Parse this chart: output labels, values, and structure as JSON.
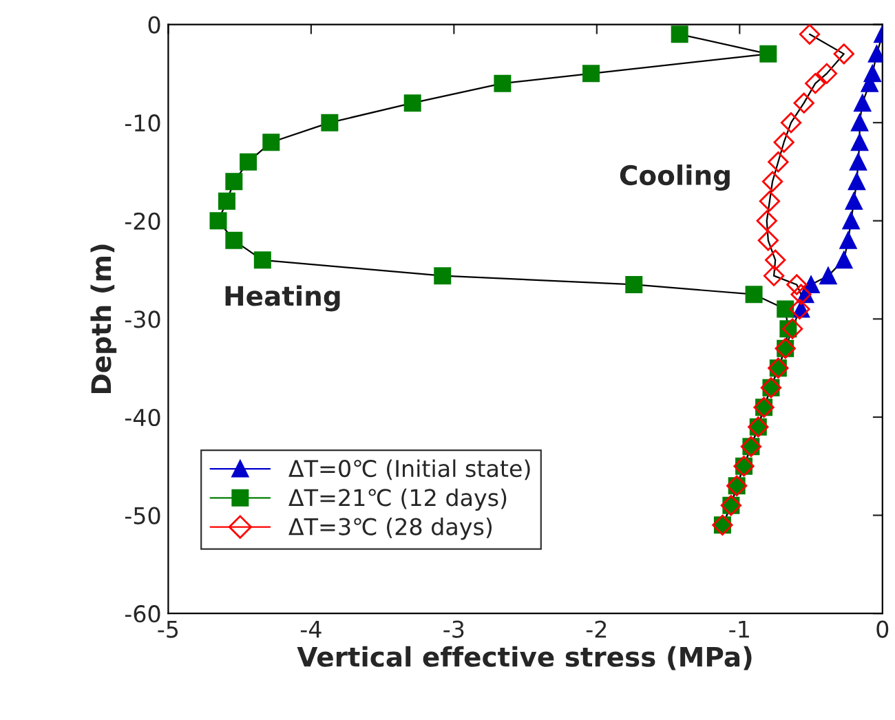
{
  "chart_data": {
    "type": "line",
    "xlabel": "Vertical effective stress (MPa)",
    "ylabel": "Depth (m)",
    "xlim": [
      -5,
      0
    ],
    "xticks": [
      -5,
      -4,
      -3,
      -2,
      -1,
      0
    ],
    "ylim": [
      -60,
      0
    ],
    "yticks": [
      -60,
      -50,
      -40,
      -30,
      -20,
      -10,
      0
    ],
    "grid": false,
    "legend": "bottom left",
    "series": [
      {
        "name": "ΔT=0℃ (Initial state)",
        "color": "#0000cc",
        "marker": "triangle",
        "x": [
          0.0,
          -0.04,
          -0.07,
          -0.09,
          -0.14,
          -0.16,
          -0.16,
          -0.17,
          -0.18,
          -0.2,
          -0.22,
          -0.24,
          -0.27,
          -0.38,
          -0.5,
          -0.54,
          -0.57,
          null
        ],
        "values": [
          -1,
          -3,
          -5,
          -6,
          -8,
          -10,
          -12,
          -14,
          -16,
          -18,
          -20,
          -22,
          -24,
          -25.6,
          -26.5,
          -27.5,
          -29,
          null
        ]
      },
      {
        "name": "ΔT=21℃ (12 days)",
        "color": "#007f00",
        "marker": "square",
        "x": [
          -1.42,
          -0.8,
          -2.04,
          -2.66,
          -3.29,
          -3.87,
          -4.28,
          -4.44,
          -4.54,
          -4.59,
          -4.65,
          -4.54,
          -4.34,
          -3.08,
          -1.74,
          -0.9,
          -0.68,
          -0.66,
          -0.68,
          -0.73,
          -0.78,
          -0.83,
          -0.87,
          -0.92,
          -0.97,
          -1.02,
          -1.06,
          -1.12
        ],
        "values": [
          -1,
          -3,
          -5,
          -6,
          -8,
          -10,
          -12,
          -14,
          -16,
          -18,
          -20,
          -22,
          -24,
          -25.6,
          -26.5,
          -27.5,
          -29,
          -31,
          -33,
          -35,
          -37,
          -39,
          -41,
          -43,
          -45,
          -47,
          -49,
          -51
        ]
      },
      {
        "name": "ΔT=3℃ (28 days)",
        "color": "#ff0000",
        "marker": "diamond",
        "x": [
          -0.51,
          -0.27,
          -0.39,
          -0.47,
          -0.55,
          -0.64,
          -0.69,
          -0.73,
          -0.77,
          -0.79,
          -0.81,
          -0.8,
          -0.75,
          -0.76,
          -0.6,
          -0.57,
          -0.58,
          -0.63,
          -0.68,
          -0.73,
          -0.78,
          -0.83,
          -0.87,
          -0.92,
          -0.97,
          -1.02,
          -1.06,
          -1.12
        ],
        "values": [
          -1,
          -3,
          -5,
          -6,
          -8,
          -10,
          -12,
          -14,
          -16,
          -18,
          -20,
          -22,
          -24,
          -25.6,
          -26.5,
          -27.5,
          -29,
          -31,
          -33,
          -35,
          -37,
          -39,
          -41,
          -43,
          -45,
          -47,
          -49,
          -51
        ]
      }
    ],
    "annotations": [
      "Heating",
      "Cooling"
    ]
  }
}
